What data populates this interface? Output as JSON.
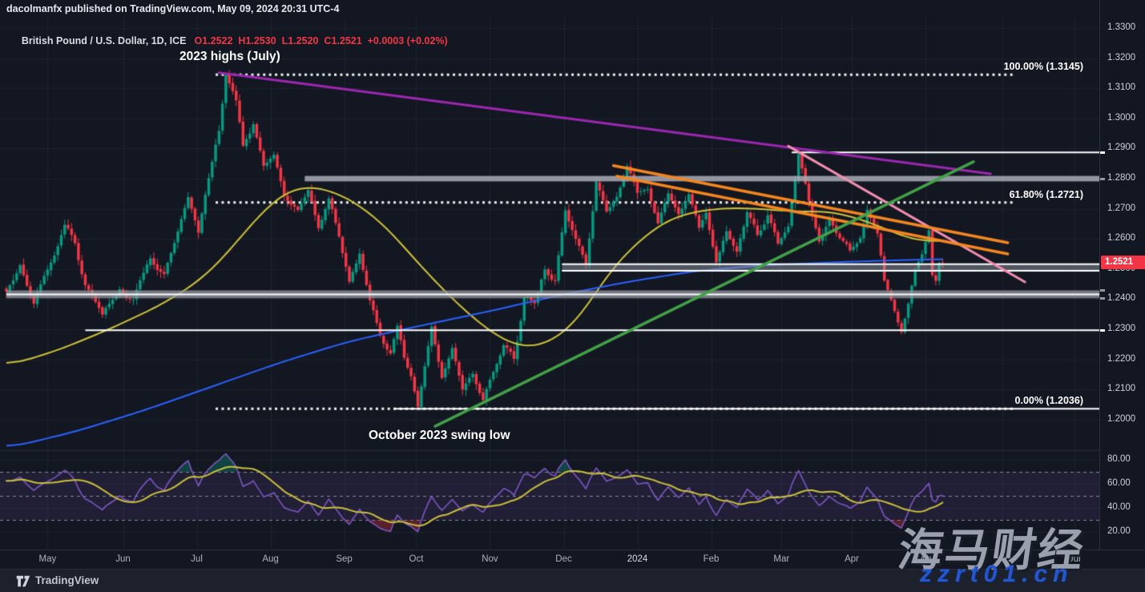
{
  "header": {
    "published_line": "dacolmanfx published on TradingView.com, May 09, 2024 20:31 UTC-4"
  },
  "legend": {
    "symbol": "British Pound / U.S. Dollar, 1D, ICE",
    "ohlc_text": "O1.2522  H1.2530  L1.2520  C1.2521  +0.0003 (+0.02%)"
  },
  "annotations": {
    "high_label": "2023 highs (July)",
    "low_label": "October 2023 swing low"
  },
  "watermark": {
    "line1": "海马财经",
    "line2": "zzrt01.cn"
  },
  "footer": {
    "brand": "TradingView"
  },
  "price_axis": {
    "labels": [
      "1.3300",
      "1.3200",
      "1.3100",
      "1.3000",
      "1.2900",
      "1.2800",
      "1.2700",
      "1.2600",
      "1.2500",
      "1.2400",
      "1.2300",
      "1.2200",
      "1.2100",
      "1.2000"
    ],
    "last_price": "1.2521",
    "marks": [
      {
        "price": 1.2887,
        "color": "#ffffff"
      },
      {
        "price": 1.28,
        "color": "#9598a1"
      },
      {
        "price": 1.2429,
        "color": "#9598a1"
      },
      {
        "price": 1.2403,
        "color": "#9598a1"
      },
      {
        "price": 1.2297,
        "color": "#ffffff"
      }
    ]
  },
  "rsi_axis": {
    "labels": [
      {
        "text": "80.00",
        "value": 80
      },
      {
        "text": "60.00",
        "value": 60
      },
      {
        "text": "40.00",
        "value": 40
      },
      {
        "text": "20.00",
        "value": 20
      }
    ]
  },
  "time_axis": {
    "labels": [
      {
        "text": "May",
        "day": 12
      },
      {
        "text": "Jun",
        "day": 34
      },
      {
        "text": "Jul",
        "day": 55.5
      },
      {
        "text": "Aug",
        "day": 77
      },
      {
        "text": "Sep",
        "day": 98.5
      },
      {
        "text": "Oct",
        "day": 119.5
      },
      {
        "text": "Nov",
        "day": 141
      },
      {
        "text": "Dec",
        "day": 162.5
      },
      {
        "text": "2024",
        "day": 184,
        "year": true
      },
      {
        "text": "Feb",
        "day": 205.5
      },
      {
        "text": "Mar",
        "day": 226
      },
      {
        "text": "Apr",
        "day": 246.5
      },
      {
        "text": "May",
        "day": 268
      },
      {
        "text": "Jun",
        "day": 290.5
      },
      {
        "text": "Jul",
        "day": 311.5
      }
    ]
  },
  "fib_labels": [
    {
      "text": "100.00% (1.3145)",
      "price": 1.3145,
      "pct": "100"
    },
    {
      "text": "61.80% (1.2721)",
      "price": 1.2721,
      "pct": "61.8"
    },
    {
      "text": "0.00% (1.2036)",
      "price": 1.2036,
      "pct": "0"
    }
  ],
  "colors": {
    "bg": "#131722",
    "up": "#089981",
    "down": "#f23645",
    "accent_red": "#f23645",
    "ma_fast": "#cdc13a",
    "ma_slow": "#2962ff",
    "purple": "#9c27b0",
    "pink": "#f48fb1",
    "orange": "#f5861f",
    "green": "#43a047",
    "white": "#ffffff",
    "band_gray": "rgba(160,163,172,0.8)",
    "rsi": "#7e57c2",
    "rsi_ma": "#cdc13a",
    "rsi_zone": "rgba(126,87,194,0.13)",
    "grid": "rgba(215,223,235,0.06)",
    "dashed": "rgba(150,153,163,0.85)"
  },
  "chart_data": {
    "type": "candlestick",
    "symbol": "GBPUSD",
    "title": "British Pound / U.S. Dollar",
    "timeframe": "1D",
    "exchange": "ICE",
    "ohlc_today": {
      "open": 1.2522,
      "high": 1.253,
      "low": 1.252,
      "close": 1.2521,
      "change": "+0.0003",
      "change_pct": "+0.02%"
    },
    "visible_price_range": [
      1.195,
      1.33
    ],
    "visible_time_range": "Apr 2023 - Jul 2024 (daily bars, day index 0 = mid-Apr 2023)",
    "price_keypoints": [
      [
        0,
        1.2415
      ],
      [
        4,
        1.253
      ],
      [
        8,
        1.239
      ],
      [
        11,
        1.247
      ],
      [
        17,
        1.264
      ],
      [
        20,
        1.258
      ],
      [
        23,
        1.245
      ],
      [
        28,
        1.233
      ],
      [
        33,
        1.244
      ],
      [
        37,
        1.238
      ],
      [
        42,
        1.254
      ],
      [
        46,
        1.248
      ],
      [
        50,
        1.262
      ],
      [
        53,
        1.272
      ],
      [
        56,
        1.262
      ],
      [
        58,
        1.275
      ],
      [
        60,
        1.285
      ],
      [
        62,
        1.295
      ],
      [
        64,
        1.3145
      ],
      [
        67,
        1.305
      ],
      [
        69,
        1.29
      ],
      [
        72,
        1.298
      ],
      [
        75,
        1.283
      ],
      [
        78,
        1.288
      ],
      [
        81,
        1.276
      ],
      [
        85,
        1.271
      ],
      [
        88,
        1.277
      ],
      [
        91,
        1.265
      ],
      [
        94,
        1.272
      ],
      [
        97,
        1.26
      ],
      [
        100,
        1.247
      ],
      [
        103,
        1.255
      ],
      [
        106,
        1.239
      ],
      [
        109,
        1.23
      ],
      [
        112,
        1.223
      ],
      [
        114,
        1.23
      ],
      [
        116,
        1.22
      ],
      [
        118,
        1.215
      ],
      [
        120,
        1.2036
      ],
      [
        124,
        1.23
      ],
      [
        127,
        1.215
      ],
      [
        130,
        1.223
      ],
      [
        133,
        1.21
      ],
      [
        136,
        1.216
      ],
      [
        139,
        1.207
      ],
      [
        142,
        1.215
      ],
      [
        145,
        1.225
      ],
      [
        148,
        1.22
      ],
      [
        151,
        1.242
      ],
      [
        154,
        1.238
      ],
      [
        157,
        1.25
      ],
      [
        160,
        1.245
      ],
      [
        163,
        1.269
      ],
      [
        166,
        1.26
      ],
      [
        169,
        1.252
      ],
      [
        172,
        1.2793
      ],
      [
        175,
        1.27
      ],
      [
        178,
        1.275
      ],
      [
        181,
        1.2828
      ],
      [
        184,
        1.273
      ],
      [
        187,
        1.277
      ],
      [
        190,
        1.266
      ],
      [
        193,
        1.275
      ],
      [
        196,
        1.27
      ],
      [
        199,
        1.276
      ],
      [
        202,
        1.262
      ],
      [
        204,
        1.268
      ],
      [
        207,
        1.2518
      ],
      [
        210,
        1.262
      ],
      [
        213,
        1.257
      ],
      [
        216,
        1.268
      ],
      [
        219,
        1.262
      ],
      [
        222,
        1.268
      ],
      [
        225,
        1.258
      ],
      [
        228,
        1.264
      ],
      [
        231,
        1.2894
      ],
      [
        234,
        1.272
      ],
      [
        237,
        1.259
      ],
      [
        240,
        1.268
      ],
      [
        243,
        1.26
      ],
      [
        246,
        1.255
      ],
      [
        249,
        1.262
      ],
      [
        251,
        1.2709
      ],
      [
        254,
        1.26
      ],
      [
        256,
        1.245
      ],
      [
        258,
        1.24
      ],
      [
        261,
        1.2299
      ],
      [
        263,
        1.238
      ],
      [
        265,
        1.249
      ],
      [
        267,
        1.255
      ],
      [
        269,
        1.2634
      ],
      [
        270,
        1.248
      ],
      [
        271,
        1.246
      ],
      [
        272,
        1.251
      ],
      [
        273,
        1.2521
      ]
    ],
    "ma50_keypoints": [
      [
        0,
        1.2178
      ],
      [
        15,
        1.223
      ],
      [
        30,
        1.23
      ],
      [
        45,
        1.238
      ],
      [
        55,
        1.245
      ],
      [
        62,
        1.252
      ],
      [
        70,
        1.263
      ],
      [
        78,
        1.273
      ],
      [
        85,
        1.2775
      ],
      [
        92,
        1.277
      ],
      [
        100,
        1.2735
      ],
      [
        110,
        1.265
      ],
      [
        120,
        1.252
      ],
      [
        130,
        1.24
      ],
      [
        140,
        1.23
      ],
      [
        148,
        1.2245
      ],
      [
        155,
        1.224
      ],
      [
        162,
        1.228
      ],
      [
        168,
        1.235
      ],
      [
        175,
        1.248
      ],
      [
        183,
        1.258
      ],
      [
        192,
        1.266
      ],
      [
        200,
        1.269
      ],
      [
        210,
        1.2703
      ],
      [
        220,
        1.27
      ],
      [
        230,
        1.269
      ],
      [
        240,
        1.2692
      ],
      [
        248,
        1.267
      ],
      [
        255,
        1.264
      ],
      [
        262,
        1.2605
      ],
      [
        268,
        1.259
      ],
      [
        273,
        1.2595
      ]
    ],
    "ma200_keypoints": [
      [
        0,
        1.1905
      ],
      [
        20,
        1.196
      ],
      [
        40,
        1.203
      ],
      [
        60,
        1.211
      ],
      [
        80,
        1.219
      ],
      [
        100,
        1.226
      ],
      [
        120,
        1.231
      ],
      [
        143,
        1.2365
      ],
      [
        160,
        1.241
      ],
      [
        180,
        1.2455
      ],
      [
        200,
        1.2492
      ],
      [
        220,
        1.2512
      ],
      [
        245,
        1.2524
      ],
      [
        273,
        1.2533
      ]
    ],
    "rsi": {
      "period": 14,
      "dashed_levels": [
        70,
        50,
        30
      ],
      "scale_range": [
        15,
        85
      ],
      "last_value_approx": 50
    },
    "fib_retracement": {
      "from": "July 2023 high",
      "to": "October 2023 low",
      "from_day": 61,
      "to_day": 294,
      "levels": [
        {
          "pct": 100.0,
          "price": 1.3145
        },
        {
          "pct": 61.8,
          "price": 1.2721
        },
        {
          "pct": 0.0,
          "price": 1.2036
        }
      ]
    },
    "drawings": {
      "trendlines": [
        {
          "name": "downtrend-from-2023-high",
          "color": "purple",
          "width": 3,
          "points": [
            [
              62,
              1.3152
            ],
            [
              287,
              1.2816
            ]
          ]
        },
        {
          "name": "steep-downtrend-2024",
          "color": "pink",
          "width": 3,
          "points": [
            [
              228,
              1.2908
            ],
            [
              297,
              1.2457
            ]
          ]
        },
        {
          "name": "descending-channel-upper",
          "color": "orange",
          "width": 3.5,
          "points": [
            [
              177,
              1.2843
            ],
            [
              292,
              1.2587
            ]
          ]
        },
        {
          "name": "descending-channel-lower",
          "color": "orange",
          "width": 3.5,
          "points": [
            [
              178,
              1.2808
            ],
            [
              292,
              1.255
            ]
          ]
        },
        {
          "name": "uptrend-from-oct-2023-low",
          "color": "green",
          "width": 3.5,
          "points": [
            [
              125,
              1.1978
            ],
            [
              282,
              1.2856
            ]
          ]
        }
      ],
      "levels": [
        {
          "name": "resistance-1.2890",
          "type": "line",
          "price": 1.2887,
          "from_day": 229,
          "color": "#ffffff",
          "width": 2
        },
        {
          "name": "supply-zone-1.2800",
          "type": "band",
          "top": 1.2809,
          "bottom": 1.2791,
          "from_day": 87,
          "fill": "rgba(170,173,182,0.85)"
        },
        {
          "name": "pivot-band-1.2500",
          "type": "edged-band",
          "top": 1.2516,
          "bottom": 1.2494,
          "from_day": 162,
          "fill": "rgba(160,163,172,0.45)"
        },
        {
          "name": "support-band-1.2415",
          "type": "band-centerline",
          "top": 1.2429,
          "bottom": 1.2403,
          "center": 1.2416,
          "from_day": 0,
          "fill": "rgba(150,153,162,0.75)"
        },
        {
          "name": "support-1.2300",
          "type": "line",
          "price": 1.2297,
          "from_day": 23,
          "color": "#ffffff",
          "width": 2
        },
        {
          "name": "oct-low-line-1.2036",
          "type": "line",
          "price": 1.2036,
          "from_day": 113,
          "color": "#ffffff",
          "width": 2
        }
      ]
    }
  }
}
